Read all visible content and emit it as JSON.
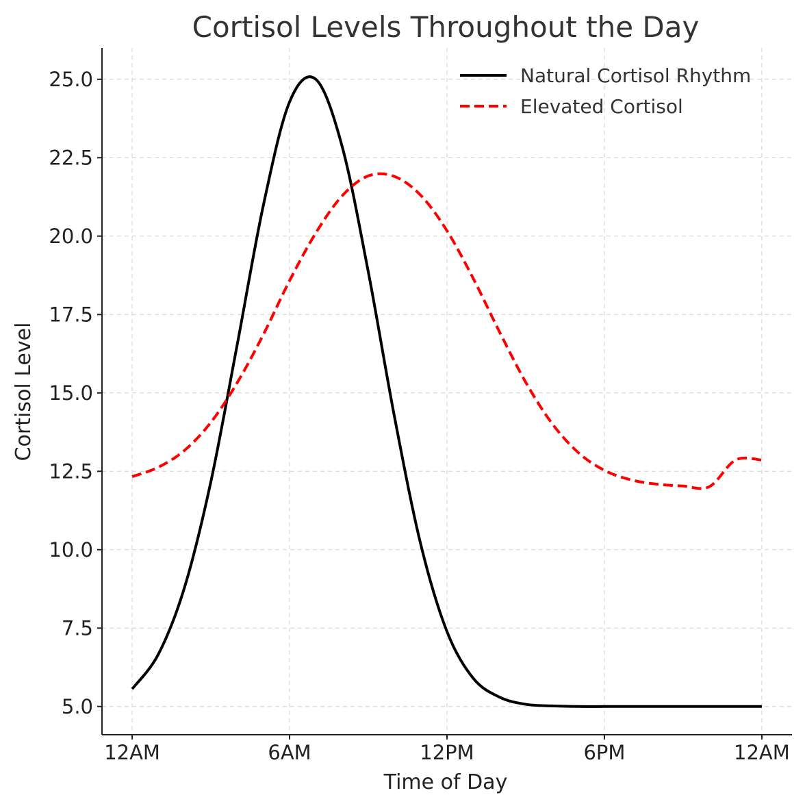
{
  "chart_data": {
    "type": "line",
    "title": "Cortisol Levels Throughout the Day",
    "xlabel": "Time of Day",
    "ylabel": "Cortisol Level",
    "x_ticks": [
      {
        "value": 0,
        "label": "12AM"
      },
      {
        "value": 6,
        "label": "6AM"
      },
      {
        "value": 12,
        "label": "12PM"
      },
      {
        "value": 18,
        "label": "6PM"
      },
      {
        "value": 24,
        "label": "12AM"
      }
    ],
    "y_ticks": [
      5.0,
      7.5,
      10.0,
      12.5,
      15.0,
      17.5,
      20.0,
      22.5,
      25.0
    ],
    "y_tick_labels": [
      "5.0",
      "7.5",
      "10.0",
      "12.5",
      "15.0",
      "17.5",
      "20.0",
      "22.5",
      "25.0"
    ],
    "xlim": [
      -1.15,
      25.15
    ],
    "ylim": [
      4.1,
      26.0
    ],
    "grid": true,
    "legend_position": "top-right",
    "x": [
      0,
      1,
      2,
      3,
      4,
      5,
      6,
      7,
      8,
      9,
      10,
      11,
      12,
      13,
      14,
      15,
      16,
      17,
      18,
      19,
      20,
      21,
      22,
      23,
      24
    ],
    "series": [
      {
        "name": "Natural Cortisol Rhythm",
        "color": "#000000",
        "style": "solid",
        "values": [
          5.56,
          6.67,
          8.81,
          12.17,
          16.52,
          20.98,
          24.28,
          25.0,
          22.87,
          18.86,
          14.23,
          10.17,
          7.39,
          5.9,
          5.3,
          5.07,
          5.02,
          5.0,
          5.0,
          5.0,
          5.0,
          5.0,
          5.0,
          5.0,
          5.0
        ]
      },
      {
        "name": "Elevated Cortisol",
        "color": "#ff0000",
        "style": "dashed",
        "values": [
          12.33,
          12.63,
          13.17,
          14.06,
          15.32,
          16.86,
          18.58,
          20.1,
          21.28,
          21.92,
          21.9,
          21.3,
          20.17,
          18.65,
          16.95,
          15.34,
          14.03,
          13.1,
          12.53,
          12.23,
          12.09,
          12.03,
          12.01,
          12.86,
          12.86
        ]
      }
    ]
  },
  "legend": {
    "items": [
      {
        "label": "Natural Cortisol Rhythm"
      },
      {
        "label": "Elevated Cortisol"
      }
    ]
  }
}
